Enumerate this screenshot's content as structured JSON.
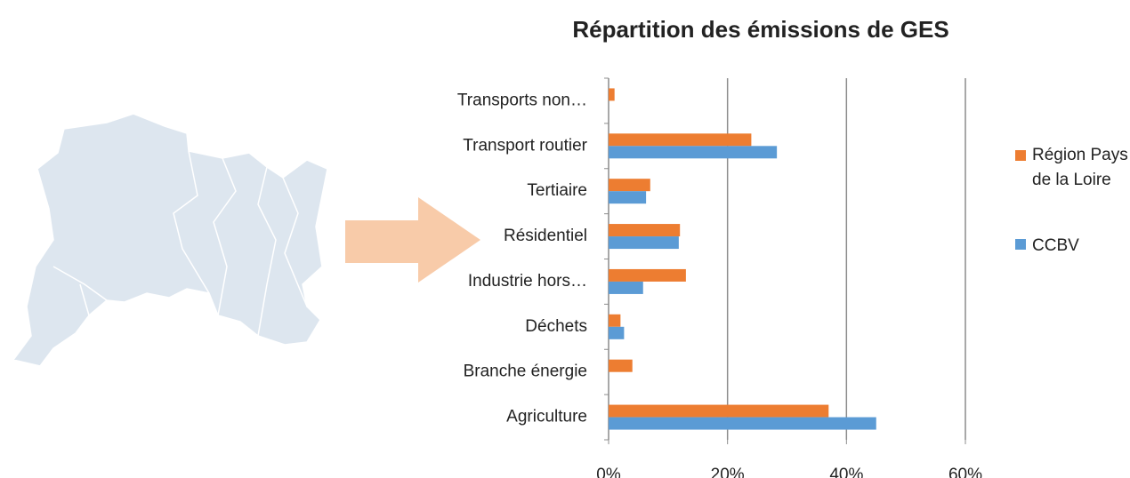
{
  "chart_data": {
    "type": "bar",
    "orientation": "horizontal",
    "title": "Répartition des émissions de GES",
    "categories": [
      "Transports non…",
      "Transport routier",
      "Tertiaire",
      "Résidentiel",
      "Industrie hors…",
      "Déchets",
      "Branche énergie",
      "Agriculture"
    ],
    "series": [
      {
        "name": "Région Pays de la Loire",
        "color": "#ed7d31",
        "values": [
          1,
          24,
          7,
          12,
          13,
          2,
          4,
          37
        ]
      },
      {
        "name": "CCBV",
        "color": "#5b9bd5",
        "values": [
          0,
          28.3,
          6.3,
          11.8,
          5.8,
          2.6,
          0,
          45
        ]
      }
    ],
    "xlim": [
      0,
      60
    ],
    "xticks": [
      {
        "value": 0,
        "label": "0%"
      },
      {
        "value": 20,
        "label": "20%"
      },
      {
        "value": 40,
        "label": "40%"
      },
      {
        "value": 60,
        "label": "60%"
      }
    ],
    "grid": true,
    "legend": "right"
  }
}
